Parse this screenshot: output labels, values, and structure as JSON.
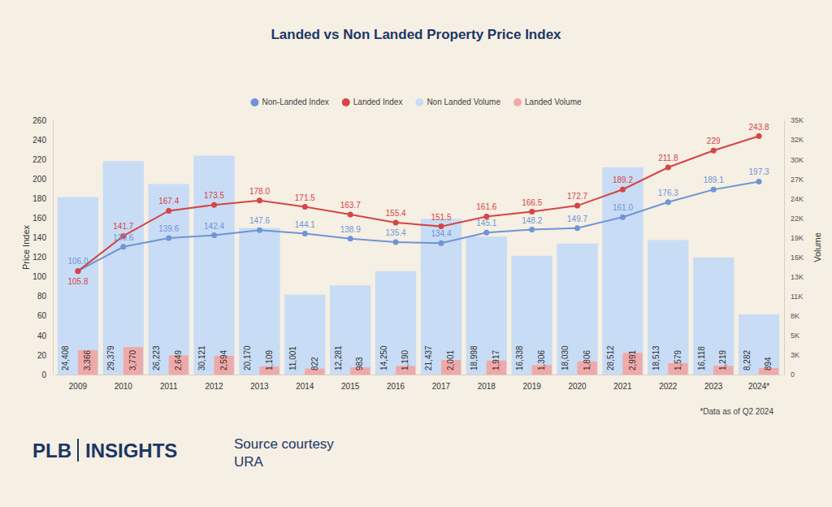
{
  "chart_data": {
    "type": "combo",
    "title": "Landed vs Non Landed Property Price Index",
    "categories": [
      "2009",
      "2010",
      "2011",
      "2012",
      "2013",
      "2014",
      "2015",
      "2016",
      "2017",
      "2018",
      "2019",
      "2020",
      "2021",
      "2022",
      "2023",
      "2024*"
    ],
    "y_label": "Price Index",
    "y2_label": "Volume",
    "ylim": [
      0,
      260
    ],
    "yticks": [
      0,
      20,
      40,
      60,
      80,
      100,
      120,
      140,
      160,
      180,
      200,
      220,
      240,
      260
    ],
    "y2lim": [
      0,
      35000
    ],
    "y2ticks": [
      0,
      {
        "value": 2692.31,
        "label": "3K"
      },
      {
        "value": 5384.62,
        "label": "5K"
      },
      {
        "value": 8076.92,
        "label": "8K"
      },
      {
        "value": 10769.23,
        "label": "11K"
      },
      {
        "value": 13461.54,
        "label": "13K"
      },
      {
        "value": 16153.85,
        "label": "16K"
      },
      {
        "value": 18846.15,
        "label": "19K"
      },
      {
        "value": 21538.46,
        "label": "22K"
      },
      {
        "value": 24230.77,
        "label": "24K"
      },
      {
        "value": 26923.08,
        "label": "27K"
      },
      {
        "value": 29615.38,
        "label": "30K"
      },
      {
        "value": 32307.69,
        "label": "32K"
      },
      {
        "value": 35000,
        "label": "35K"
      }
    ],
    "grid": false,
    "legend": "top",
    "data_labels": true,
    "note": "*Data as of Q2 2024",
    "series": [
      {
        "name": "Non-Landed Index",
        "type": "line",
        "color": "#6f95d6",
        "marker": "circle",
        "values": [
          106.0,
          130.6,
          139.6,
          142.4,
          147.6,
          144.1,
          138.9,
          135.4,
          134.4,
          145.1,
          148.2,
          149.7,
          161.0,
          176.3,
          189.1,
          197.3
        ],
        "value_labels": [
          "106.0",
          "130.6",
          "139.6",
          "142.4",
          "147.6",
          "144.1",
          "138.9",
          "135.4",
          "134.4",
          "145.1",
          "148.2",
          "149.7",
          "161.0",
          "176.3",
          "189.1",
          "197.3"
        ]
      },
      {
        "name": "Landed Index",
        "type": "line",
        "color": "#d64545",
        "marker": "circle",
        "values": [
          105.8,
          141.7,
          167.4,
          173.5,
          178.0,
          171.5,
          163.7,
          155.4,
          151.5,
          161.6,
          166.5,
          172.7,
          189.2,
          211.8,
          229,
          243.8
        ],
        "value_labels": [
          "105.8",
          "141.7",
          "167.4",
          "173.5",
          "178.0",
          "171.5",
          "163.7",
          "155.4",
          "151.5",
          "161.6",
          "166.5",
          "172.7",
          "189.2",
          "211.8",
          "229",
          "243.8"
        ]
      },
      {
        "name": "Non Landed Volume",
        "type": "bar",
        "axis": "y2",
        "color": "#c8dcf5",
        "values": [
          24408,
          29379,
          26223,
          30121,
          20170,
          11001,
          12281,
          14250,
          21437,
          18998,
          16338,
          18030,
          28512,
          18513,
          16118,
          8282
        ],
        "value_labels": [
          "24,408",
          "29,379",
          "26,223",
          "30,121",
          "20,170",
          "11,001",
          "12,281",
          "14,250",
          "21,437",
          "18,998",
          "16,338",
          "18,030",
          "28,512",
          "18,513",
          "16,118",
          "8,282"
        ]
      },
      {
        "name": "Landed Volume",
        "type": "bar",
        "axis": "y2",
        "color": "#f0a9a9",
        "values": [
          3366,
          3770,
          2649,
          2594,
          1109,
          822,
          983,
          1190,
          2001,
          1917,
          1306,
          1806,
          2991,
          1579,
          1219,
          894
        ],
        "value_labels": [
          "3,366",
          "3,770",
          "2,649",
          "2,594",
          "1,109",
          "822",
          "983",
          "1,190",
          "2,001",
          "1,917",
          "1,306",
          "1,806",
          "2,991",
          "1,579",
          "1,219",
          "894"
        ]
      }
    ]
  },
  "branding": {
    "logo_left": "PLB",
    "logo_right": "INSIGHTS",
    "source": [
      "Source courtesy",
      "URA"
    ]
  }
}
